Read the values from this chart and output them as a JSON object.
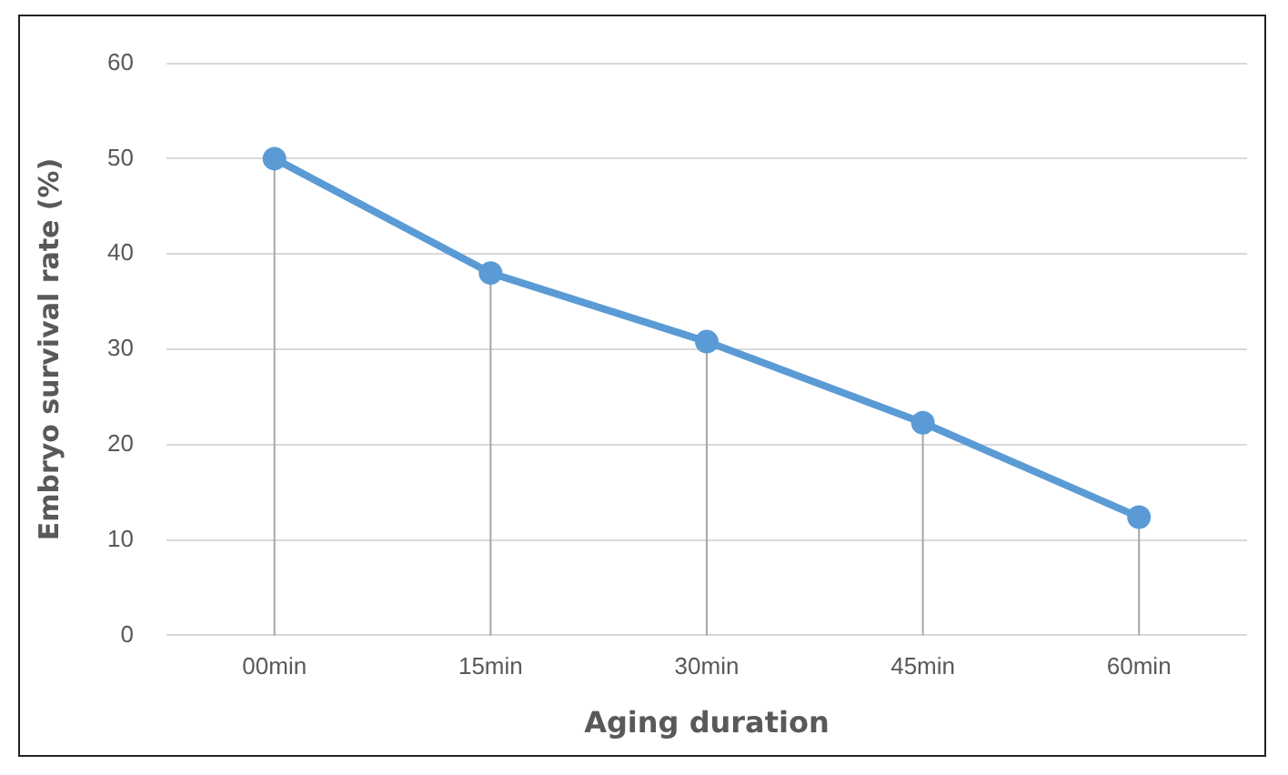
{
  "chart_data": {
    "type": "line",
    "xlabel": "Aging duration",
    "ylabel": "Embryo survival rate (%)",
    "categories": [
      "00min",
      "15min",
      "30min",
      "45min",
      "60min"
    ],
    "series": [
      {
        "color": "#5b9bd5",
        "values": [
          50,
          38,
          30.8,
          22.3,
          12.4
        ],
        "errors": [
          [
            0,
            50
          ],
          [
            0,
            38
          ],
          [
            0,
            30.8
          ],
          [
            0,
            22.3
          ],
          [
            0,
            12.4
          ]
        ]
      }
    ],
    "ylim": [
      0,
      60
    ],
    "yticks": [
      0,
      10,
      20,
      30,
      40,
      50,
      60
    ],
    "grid": "y",
    "legend": false,
    "marker": "circle",
    "line_style": "solid"
  }
}
